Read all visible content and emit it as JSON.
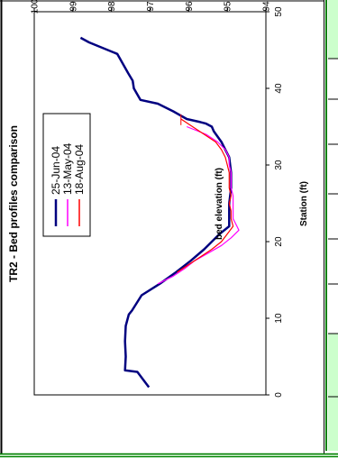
{
  "chart_data": {
    "type": "line",
    "title": "TR2 - Bed profiles comparison",
    "xlabel": "Station (ft)",
    "ylabel": "bed elevation (ft)",
    "xlim": [
      0,
      50
    ],
    "ylim": [
      94,
      100
    ],
    "x_ticks": [
      "0",
      "10",
      "20",
      "30",
      "40",
      "50"
    ],
    "y_ticks": [
      "94",
      "95",
      "96",
      "97",
      "98",
      "99",
      "100"
    ],
    "grid": false,
    "legend_position": "top-left",
    "series": [
      {
        "name": "25-Jun-04",
        "color": "#000080",
        "x": [
          1,
          3,
          3.2,
          5,
          7,
          9,
          10.5,
          11,
          13,
          14.5,
          16,
          17.5,
          19,
          21,
          22,
          23,
          25,
          27,
          29,
          31,
          33,
          34.4,
          35,
          35.4,
          35.6,
          36,
          37,
          38,
          38.5,
          40,
          41,
          42,
          44.5,
          46,
          46.6
        ],
        "values": [
          97.03,
          97.33,
          97.65,
          97.63,
          97.65,
          97.63,
          97.55,
          97.47,
          97.22,
          96.75,
          96.33,
          95.95,
          95.6,
          95.2,
          94.95,
          94.95,
          94.95,
          94.9,
          94.9,
          94.95,
          95.15,
          95.35,
          95.4,
          95.55,
          95.7,
          96.05,
          96.4,
          96.8,
          97.25,
          97.42,
          97.45,
          97.57,
          97.85,
          98.58,
          98.8
        ]
      },
      {
        "name": "13-May-04",
        "color": "#ff00ff",
        "x": [
          14.5,
          15.5,
          16.5,
          17.5,
          18.5,
          19.5,
          20.5,
          21.5,
          22,
          23,
          24,
          25,
          26,
          27,
          28,
          29,
          30,
          31,
          32,
          33,
          34,
          35
        ],
        "values": [
          96.8,
          96.4,
          96.1,
          95.85,
          95.5,
          95.15,
          94.9,
          94.7,
          94.75,
          94.85,
          94.85,
          94.85,
          94.85,
          94.9,
          94.9,
          94.9,
          94.95,
          94.95,
          95.05,
          95.25,
          95.55,
          96.05
        ]
      },
      {
        "name": "18-Aug-04",
        "color": "#ff0000",
        "x": [
          16,
          17,
          18,
          19,
          20,
          21,
          22,
          23,
          24,
          25,
          26,
          27,
          28,
          29,
          30,
          31,
          32,
          33,
          34,
          35,
          36
        ],
        "values": [
          96.3,
          96.0,
          95.7,
          95.4,
          95.15,
          95.0,
          94.85,
          94.9,
          94.9,
          94.95,
          94.9,
          94.95,
          94.95,
          94.95,
          95.0,
          95.05,
          95.15,
          95.3,
          95.6,
          95.9,
          96.2
        ]
      }
    ]
  }
}
